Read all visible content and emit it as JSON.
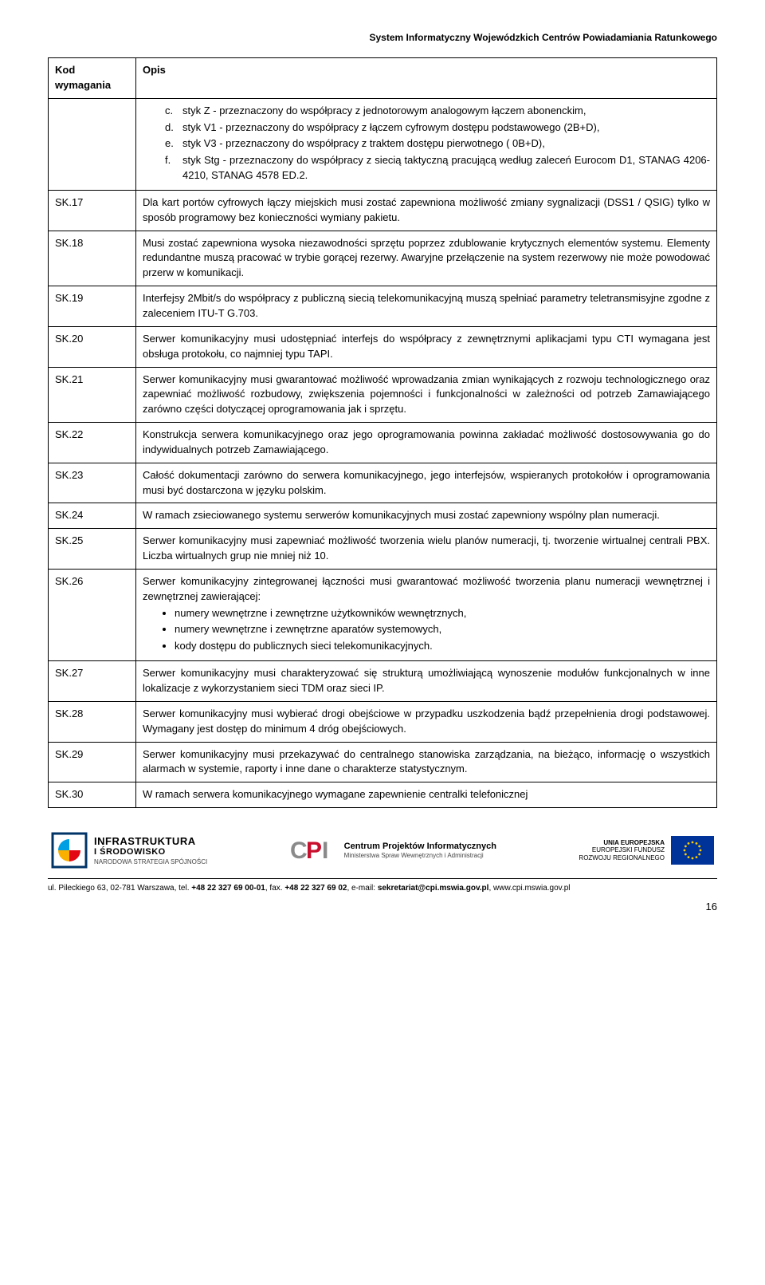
{
  "header": "System Informatyczny Wojewódzkich Centrów Powiadamiania Ratunkowego",
  "table": {
    "col1": "Kod wymagania",
    "col2": "Opis",
    "intro_sublist": [
      {
        "m": "c.",
        "t": "styk Z - przeznaczony do współpracy z jednotorowym analogowym łączem abonenckim,"
      },
      {
        "m": "d.",
        "t": "styk V1 - przeznaczony do współpracy z łączem cyfrowym dostępu podstawowego (2B+D),"
      },
      {
        "m": "e.",
        "t": "styk V3 - przeznaczony do współpracy z traktem dostępu pierwotnego ( 0B+D),"
      },
      {
        "m": "f.",
        "t": "styk Stg - przeznaczony do współpracy z siecią taktyczną pracującą według zaleceń Eurocom D1, STANAG 4206-4210, STANAG 4578 ED.2."
      }
    ],
    "rows": [
      {
        "code": "SK.17",
        "desc": "Dla kart portów cyfrowych łączy miejskich musi zostać zapewniona możliwość zmiany sygnalizacji (DSS1 / QSIG) tylko w sposób programowy bez konieczności wymiany pakietu."
      },
      {
        "code": "SK.18",
        "desc": "Musi zostać zapewniona wysoka niezawodności sprzętu poprzez zdublowanie krytycznych elementów systemu. Elementy redundantne muszą pracować w trybie gorącej rezerwy. Awaryjne przełączenie na system rezerwowy nie może powodować przerw w komunikacji."
      },
      {
        "code": "SK.19",
        "desc": "Interfejsy 2Mbit/s do współpracy z publiczną siecią telekomunikacyjną muszą spełniać parametry teletransmisyjne zgodne z zaleceniem ITU-T G.703."
      },
      {
        "code": "SK.20",
        "desc": "Serwer komunikacyjny musi udostępniać interfejs do współpracy z zewnętrznymi aplikacjami typu CTI wymagana jest obsługa protokołu, co najmniej typu TAPI."
      },
      {
        "code": "SK.21",
        "desc": "Serwer komunikacyjny musi gwarantować możliwość wprowadzania zmian wynikających z rozwoju technologicznego oraz zapewniać możliwość rozbudowy, zwiększenia pojemności i funkcjonalności w zależności od potrzeb Zamawiającego zarówno części dotyczącej oprogramowania jak i sprzętu."
      },
      {
        "code": "SK.22",
        "desc": "Konstrukcja serwera komunikacyjnego oraz jego oprogramowania powinna zakładać możliwość dostosowywania go do indywidualnych potrzeb Zamawiającego."
      },
      {
        "code": "SK.23",
        "desc": "Całość dokumentacji zarówno do serwera komunikacyjnego, jego interfejsów, wspieranych protokołów i oprogramowania musi być dostarczona w języku polskim."
      },
      {
        "code": "SK.24",
        "desc": "W ramach zsieciowanego systemu serwerów komunikacyjnych musi zostać zapewniony wspólny plan numeracji."
      },
      {
        "code": "SK.25",
        "desc": "Serwer komunikacyjny musi zapewniać możliwość tworzenia wielu planów numeracji, tj. tworzenie wirtualnej centrali PBX. Liczba wirtualnych grup nie mniej niż 10."
      },
      {
        "code": "SK.26",
        "desc": "Serwer komunikacyjny zintegrowanej łączności musi gwarantować możliwość tworzenia planu numeracji wewnętrznej i zewnętrznej zawierającej:",
        "bullets": [
          "numery wewnętrzne i zewnętrzne użytkowników wewnętrznych,",
          "numery wewnętrzne i zewnętrzne aparatów systemowych,",
          "kody dostępu do publicznych sieci telekomunikacyjnych."
        ]
      },
      {
        "code": "SK.27",
        "desc": "Serwer komunikacyjny musi charakteryzować się strukturą umożliwiającą wynoszenie modułów funkcjonalnych w inne lokalizacje z wykorzystaniem sieci TDM oraz sieci IP."
      },
      {
        "code": "SK.28",
        "desc": "Serwer komunikacyjny musi wybierać drogi obejściowe w przypadku uszkodzenia bądź przepełnienia drogi podstawowej. Wymagany jest dostęp do minimum 4 dróg obejściowych."
      },
      {
        "code": "SK.29",
        "desc": "Serwer komunikacyjny musi przekazywać do centralnego stanowiska zarządzania, na bieżąco, informację o wszystkich alarmach w systemie, raporty i inne dane o charakterze statystycznym."
      },
      {
        "code": "SK.30",
        "desc": "W ramach serwera komunikacyjnego wymagane zapewnienie centralki telefonicznej"
      }
    ]
  },
  "footer": {
    "logo1_big": "INFRASTRUKTURA",
    "logo1_small1": "I ŚRODOWISKO",
    "logo1_small2": "NARODOWA STRATEGIA SPÓJNOŚCI",
    "logo2_big": "Centrum Projektów Informatycznych",
    "logo2_small": "Ministerstwa Spraw Wewnętrznych i Administracji",
    "eu_1": "UNIA EUROPEJSKA",
    "eu_2": "EUROPEJSKI FUNDUSZ",
    "eu_3": "ROZWOJU REGIONALNEGO",
    "addr_prefix": "ul. Pileckiego 63, 02-781 Warszawa, tel. ",
    "addr_tel": "+48 22 327 69 00-01",
    "addr_mid": ", fax. ",
    "addr_fax": "+48 22 327 69 02",
    "addr_mid2": ", e-mail: ",
    "addr_email": "sekretariat@cpi.mswia.gov.pl",
    "addr_end": ", www.cpi.mswia.gov.pl",
    "pagenum": "16"
  },
  "colors": {
    "text": "#000000",
    "bg": "#ffffff",
    "border": "#000000",
    "logo1_a": "#e30613",
    "logo1_b": "#f9b000",
    "logo1_c": "#009fe3",
    "cpi_red": "#c8102e",
    "cpi_gray": "#8a8a8a",
    "eu_blue": "#003399",
    "eu_yellow": "#ffcc00"
  }
}
